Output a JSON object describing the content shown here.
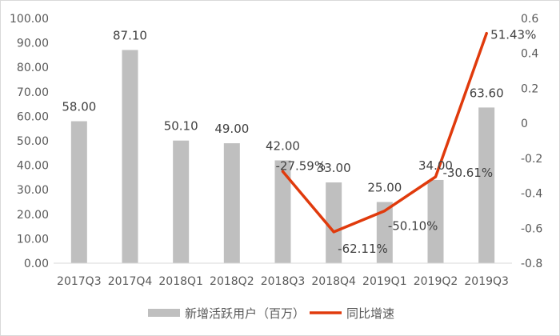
{
  "chart_data": {
    "type": "bar",
    "categories": [
      "2017Q3",
      "2017Q4",
      "2018Q1",
      "2018Q2",
      "2018Q3",
      "2018Q4",
      "2019Q1",
      "2019Q2",
      "2019Q3"
    ],
    "series": [
      {
        "name": "新增活跃用户（百万）",
        "type": "bar",
        "axis": "left",
        "color": "#bfbfbf",
        "values": [
          58.0,
          87.1,
          50.1,
          49.0,
          42.0,
          33.0,
          25.0,
          34.0,
          63.6
        ],
        "labels": [
          "58.00",
          "87.10",
          "50.10",
          "49.00",
          "42.00",
          "33.00",
          "25.00",
          "34.00",
          "63.60"
        ]
      },
      {
        "name": "同比增速",
        "type": "line",
        "axis": "right",
        "color": "#e03a0c",
        "values": [
          null,
          null,
          null,
          null,
          -0.2759,
          -0.6211,
          -0.501,
          -0.3061,
          0.5143
        ],
        "labels": [
          "",
          "",
          "",
          "",
          "-27.59%",
          "-62.11%",
          "-50.10%",
          "-30.61%",
          "51.43%"
        ]
      }
    ],
    "y_left": {
      "range": [
        0,
        100
      ],
      "ticks": [
        0,
        10,
        20,
        30,
        40,
        50,
        60,
        70,
        80,
        90,
        100
      ],
      "tick_labels": [
        "0.00",
        "10.00",
        "20.00",
        "30.00",
        "40.00",
        "50.00",
        "60.00",
        "70.00",
        "80.00",
        "90.00",
        "100.00"
      ]
    },
    "y_right": {
      "range": [
        -0.8,
        0.6
      ],
      "ticks": [
        -0.8,
        -0.6,
        -0.4,
        -0.2,
        0,
        0.2,
        0.4,
        0.6
      ],
      "tick_labels": [
        "-0.8",
        "-0.6",
        "-0.4",
        "-0.2",
        "0",
        "0.2",
        "0.4",
        "0.6"
      ]
    },
    "grid": false,
    "legend_position": "bottom"
  }
}
